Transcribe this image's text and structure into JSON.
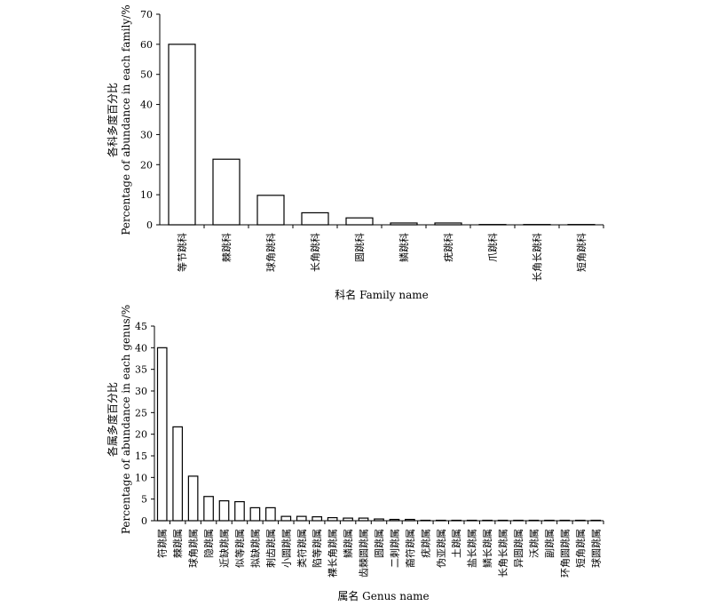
{
  "chart_data": [
    {
      "type": "bar",
      "ylabel_cn": "各科多度百分比",
      "ylabel_en": "Percentage of abundance in each family/%",
      "xlabel": "科名 Family name",
      "ylim": [
        0,
        70
      ],
      "yticks": [
        0,
        10,
        20,
        30,
        40,
        50,
        60,
        70
      ],
      "categories": [
        "等节跳科",
        "棘跳科",
        "球角跳科",
        "长角跳科",
        "圆跳科",
        "鳞跳科",
        "疣跳科",
        "爪跳科",
        "长角长跳科",
        "短角跳科"
      ],
      "values": [
        60,
        21.8,
        9.8,
        4.0,
        2.3,
        0.6,
        0.6,
        0.1,
        0.1,
        0.1
      ]
    },
    {
      "type": "bar",
      "ylabel_cn": "各属多度百分比",
      "ylabel_en": "Percentage of abundance in each genus/%",
      "xlabel": "属名 Genus name",
      "ylim": [
        0,
        45
      ],
      "yticks": [
        0,
        5,
        10,
        15,
        20,
        25,
        30,
        35,
        40,
        45
      ],
      "categories": [
        "符跳属",
        "棘跳属",
        "球角跳属",
        "隐跳属",
        "近缺跳属",
        "似等跳属",
        "拟缺跳属",
        "刺齿跳属",
        "小圆跳属",
        "类符跳属",
        "陷等跳属",
        "裸长角跳属",
        "鳞跳属",
        "齿棘圆跳属",
        "圆跳属",
        "二刺跳属",
        "裔符跳属",
        "疣跳属",
        "伪亚跳属",
        "土跳属",
        "盐长跳属",
        "鳞长跳属",
        "长角长跳属",
        "异圆跳属",
        "沃跳属",
        "副跳属",
        "环角圆跳属",
        "短角跳属",
        "球圆跳属"
      ],
      "values": [
        40,
        21.7,
        10.3,
        5.6,
        4.6,
        4.4,
        3.0,
        3.0,
        1.0,
        1.0,
        0.9,
        0.7,
        0.6,
        0.6,
        0.4,
        0.3,
        0.3,
        0.1,
        0.1,
        0.1,
        0.1,
        0.1,
        0.1,
        0.1,
        0.1,
        0.1,
        0.1,
        0.1,
        0.1
      ]
    }
  ]
}
